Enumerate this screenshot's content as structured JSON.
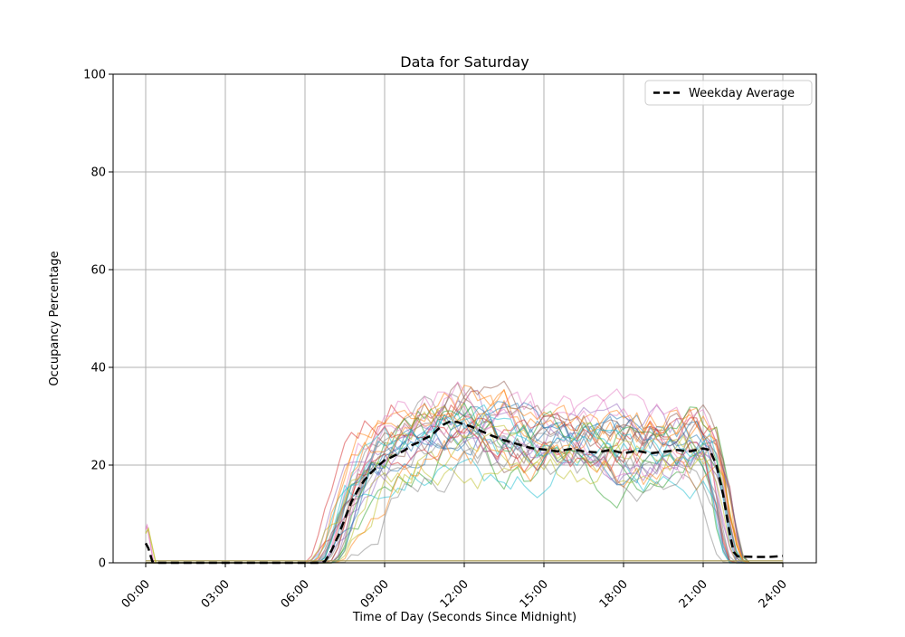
{
  "chart_data": {
    "type": "line",
    "title": "Data for Saturday",
    "xlabel": "Time of Day (Seconds Since Midnight)",
    "ylabel": "Occupancy Percentage",
    "ylim": [
      0,
      100
    ],
    "xlim_hours": [
      -1.23,
      25.26
    ],
    "grid": true,
    "grid_color": "#b0b0b0",
    "frame_color": "#000000",
    "x_ticks": [
      {
        "hours": 0,
        "label": "00:00"
      },
      {
        "hours": 3,
        "label": "03:00"
      },
      {
        "hours": 6,
        "label": "06:00"
      },
      {
        "hours": 9,
        "label": "09:00"
      },
      {
        "hours": 12,
        "label": "12:00"
      },
      {
        "hours": 15,
        "label": "15:00"
      },
      {
        "hours": 18,
        "label": "18:00"
      },
      {
        "hours": 21,
        "label": "21:00"
      },
      {
        "hours": 24,
        "label": "24:00"
      }
    ],
    "y_ticks": [
      0,
      20,
      40,
      60,
      80,
      100
    ],
    "legend": {
      "position": "upper right",
      "entries": [
        {
          "label": "Weekday Average",
          "color": "#000000",
          "dashed": true
        }
      ]
    },
    "average_series": {
      "name": "Weekday Average",
      "color": "#000000",
      "linewidth": 2.5,
      "dash": [
        9,
        5
      ],
      "points": [
        [
          0,
          4
        ],
        [
          0.1,
          3
        ],
        [
          0.25,
          0.3
        ],
        [
          0.5,
          0
        ],
        [
          6.6,
          0
        ],
        [
          6.75,
          0.3
        ],
        [
          7,
          2.5
        ],
        [
          7.25,
          5.5
        ],
        [
          7.5,
          9
        ],
        [
          7.75,
          12.5
        ],
        [
          8,
          15
        ],
        [
          8.25,
          17
        ],
        [
          8.5,
          18.5
        ],
        [
          8.75,
          19.8
        ],
        [
          9,
          21
        ],
        [
          9.25,
          21.6
        ],
        [
          9.5,
          22.3
        ],
        [
          9.75,
          23
        ],
        [
          10,
          24
        ],
        [
          10.25,
          24.6
        ],
        [
          10.5,
          25.4
        ],
        [
          10.75,
          26
        ],
        [
          11,
          27.3
        ],
        [
          11.25,
          28.4
        ],
        [
          11.5,
          29
        ],
        [
          11.75,
          28.8
        ],
        [
          12,
          28.3
        ],
        [
          12.25,
          27.9
        ],
        [
          12.5,
          27.3
        ],
        [
          12.75,
          26.7
        ],
        [
          13,
          26.1
        ],
        [
          13.25,
          25.6
        ],
        [
          13.5,
          25.1
        ],
        [
          13.75,
          24.7
        ],
        [
          14,
          24.3
        ],
        [
          14.25,
          23.9
        ],
        [
          14.5,
          23.5
        ],
        [
          14.75,
          23.3
        ],
        [
          15,
          23.2
        ],
        [
          15.5,
          22.8
        ],
        [
          16,
          23.3
        ],
        [
          16.5,
          22.8
        ],
        [
          17,
          22.6
        ],
        [
          17.5,
          23.1
        ],
        [
          18,
          22.4
        ],
        [
          18.5,
          22.9
        ],
        [
          19,
          22.4
        ],
        [
          19.5,
          22.7
        ],
        [
          20,
          23.1
        ],
        [
          20.5,
          22.8
        ],
        [
          21,
          23.4
        ],
        [
          21.25,
          23.1
        ],
        [
          21.5,
          20
        ],
        [
          21.75,
          14
        ],
        [
          22,
          6
        ],
        [
          22.15,
          2.2
        ],
        [
          22.3,
          1.3
        ],
        [
          23,
          1.2
        ],
        [
          23.5,
          1.2
        ],
        [
          24,
          1.4
        ]
      ]
    },
    "individual_series": {
      "note": "Approximately 32 semi-transparent individual Saturday traces; values approximate, generated from envelope keypoints plus seeded noise",
      "count": 32,
      "colors": [
        "#1f77b4",
        "#ff7f0e",
        "#2ca02c",
        "#d62728",
        "#9467bd",
        "#8c564b",
        "#e377c2",
        "#7f7f7f",
        "#bcbd22",
        "#17becf"
      ],
      "alpha": 0.5,
      "linewidth": 1.2,
      "step_hours": 0.25,
      "seed": 13,
      "scale_range": [
        0.78,
        1.28
      ],
      "noise_amp": 6.3,
      "noise_damp": 0.8,
      "start_jitter_hours": 0.6,
      "end_jitter_hours": 0.35,
      "max_value": 45,
      "envelope_points": [
        [
          0,
          0
        ],
        [
          6.6,
          0
        ],
        [
          6.9,
          2
        ],
        [
          7.2,
          7
        ],
        [
          7.5,
          11
        ],
        [
          8,
          16
        ],
        [
          8.5,
          19
        ],
        [
          9,
          21.5
        ],
        [
          9.5,
          23
        ],
        [
          10,
          24.5
        ],
        [
          10.5,
          25.5
        ],
        [
          11,
          27
        ],
        [
          11.5,
          28
        ],
        [
          12,
          27.5
        ],
        [
          12.5,
          27
        ],
        [
          13,
          26
        ],
        [
          13.5,
          25
        ],
        [
          14,
          24
        ],
        [
          14.5,
          23.5
        ],
        [
          15,
          23
        ],
        [
          16,
          23
        ],
        [
          17,
          22.5
        ],
        [
          18,
          22.5
        ],
        [
          19,
          22.5
        ],
        [
          20,
          23
        ],
        [
          21,
          23.5
        ],
        [
          21.3,
          22
        ],
        [
          21.7,
          13
        ],
        [
          22,
          4
        ],
        [
          22.2,
          0.5
        ],
        [
          22.35,
          0
        ],
        [
          24,
          0
        ]
      ]
    },
    "floor_series": {
      "color": "#a89a55",
      "alpha": 0.9,
      "linewidth": 1.3,
      "value": 0.4,
      "from_hour": 0,
      "to_hour": 24
    },
    "midnight_spikes": [
      {
        "color": "#e377c2",
        "alpha": 0.75,
        "linewidth": 1.4,
        "points": [
          [
            0,
            6.8
          ],
          [
            0.05,
            7.6
          ],
          [
            0.3,
            0
          ]
        ]
      },
      {
        "color": "#bcbd22",
        "alpha": 0.75,
        "linewidth": 1.4,
        "points": [
          [
            0,
            6
          ],
          [
            0.1,
            7
          ],
          [
            0.38,
            0
          ]
        ]
      }
    ]
  }
}
